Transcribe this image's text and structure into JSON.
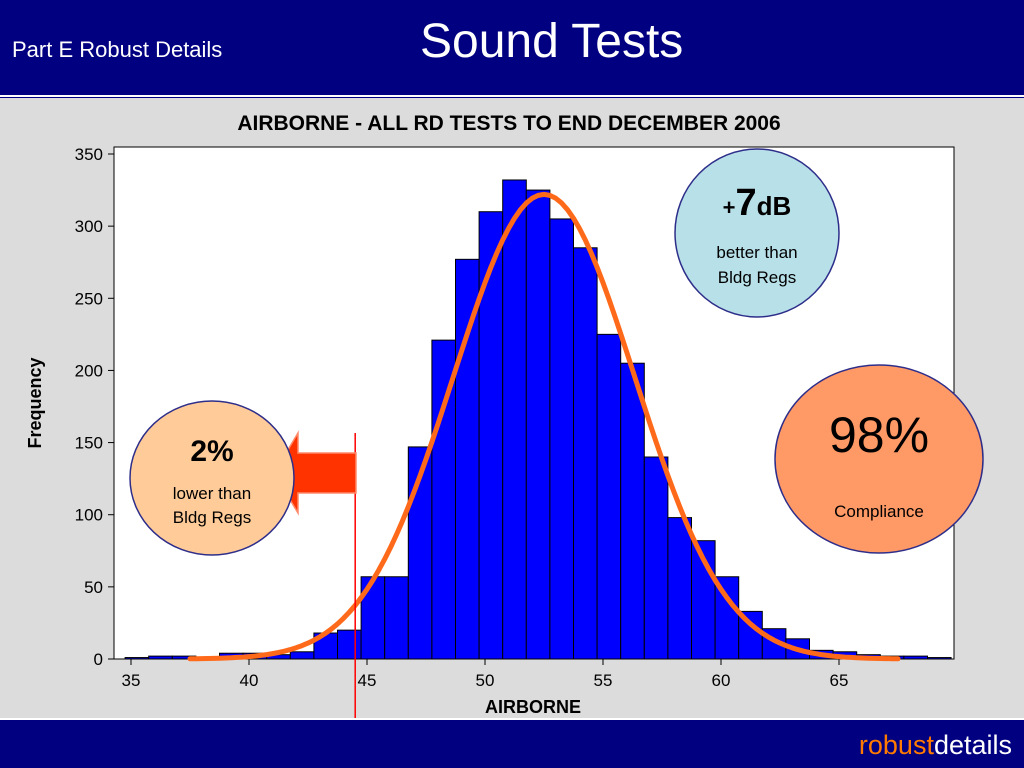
{
  "header": {
    "subtitle": "Part E Robust Details",
    "title": "Sound Tests"
  },
  "footer": {
    "brand_part1": "robust",
    "brand_part2": "details"
  },
  "colors": {
    "header_bg": "#000080",
    "bar_fill": "#0000ff",
    "curve": "#ff6a1a",
    "marker_line": "#ff0000",
    "arrow": "#ff3300",
    "bubble_blue": "#b8e0e8",
    "bubble_peach": "#ffcc99",
    "bubble_orange": "#ff9966"
  },
  "callouts": {
    "improvement": {
      "prefix": "+",
      "value": "7",
      "unit": "dB",
      "line1": "better than",
      "line2": "Bldg Regs"
    },
    "compliance": {
      "value": "98%",
      "label": "Compliance"
    },
    "failure": {
      "value": "2%",
      "line1": "lower than",
      "line2": "Bldg Regs"
    }
  },
  "chart_data": {
    "type": "bar",
    "title": "AIRBORNE - ALL RD TESTS TO END DECEMBER 2006",
    "xlabel": "AIRBORNE",
    "ylabel": "Frequency",
    "xlim": [
      34.5,
      69.5
    ],
    "ylim": [
      0,
      350
    ],
    "xticks": [
      35,
      40,
      45,
      50,
      55,
      60,
      65
    ],
    "yticks": [
      0,
      50,
      100,
      150,
      200,
      250,
      300,
      350
    ],
    "bin_width": 1,
    "bins": [
      {
        "start": 34.75,
        "value": 1
      },
      {
        "start": 35.75,
        "value": 2
      },
      {
        "start": 36.75,
        "value": 2
      },
      {
        "start": 37.75,
        "value": 1
      },
      {
        "start": 38.75,
        "value": 4
      },
      {
        "start": 39.75,
        "value": 4
      },
      {
        "start": 40.75,
        "value": 3
      },
      {
        "start": 41.75,
        "value": 5
      },
      {
        "start": 42.75,
        "value": 18
      },
      {
        "start": 43.75,
        "value": 20
      },
      {
        "start": 44.75,
        "value": 57
      },
      {
        "start": 45.75,
        "value": 57
      },
      {
        "start": 46.75,
        "value": 147
      },
      {
        "start": 47.75,
        "value": 221
      },
      {
        "start": 48.75,
        "value": 277
      },
      {
        "start": 49.75,
        "value": 310
      },
      {
        "start": 50.75,
        "value": 332
      },
      {
        "start": 51.75,
        "value": 325
      },
      {
        "start": 52.75,
        "value": 305
      },
      {
        "start": 53.75,
        "value": 285
      },
      {
        "start": 54.75,
        "value": 225
      },
      {
        "start": 55.75,
        "value": 205
      },
      {
        "start": 56.75,
        "value": 140
      },
      {
        "start": 57.75,
        "value": 98
      },
      {
        "start": 58.75,
        "value": 82
      },
      {
        "start": 59.75,
        "value": 57
      },
      {
        "start": 60.75,
        "value": 33
      },
      {
        "start": 61.75,
        "value": 21
      },
      {
        "start": 62.75,
        "value": 14
      },
      {
        "start": 63.75,
        "value": 6
      },
      {
        "start": 64.75,
        "value": 5
      },
      {
        "start": 65.75,
        "value": 3
      },
      {
        "start": 66.75,
        "value": 2
      },
      {
        "start": 67.75,
        "value": 2
      },
      {
        "start": 68.75,
        "value": 1
      }
    ],
    "fit_curve": {
      "type": "normal",
      "mean": 52.5,
      "std": 3.85,
      "peak": 322,
      "x_range": [
        37.5,
        67.5
      ]
    },
    "reference_line": {
      "x": 44.5
    }
  }
}
